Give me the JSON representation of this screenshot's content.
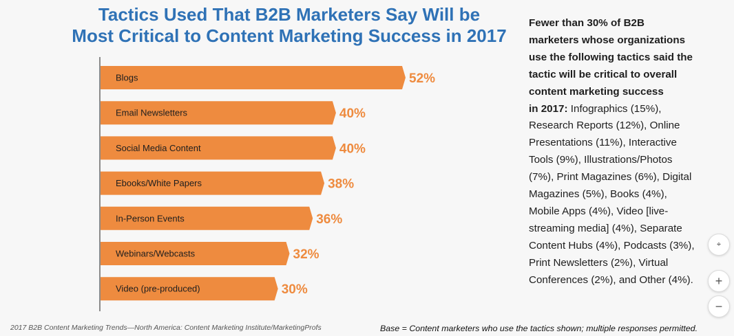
{
  "title": {
    "line1": "Tactics Used That B2B Marketers Say Will be",
    "line2": "Most Critical to Content Marketing Success in 2017"
  },
  "chart_data": {
    "type": "bar",
    "orientation": "horizontal",
    "title": "Tactics Used That B2B Marketers Say Will be Most Critical to Content Marketing Success in 2017",
    "categories": [
      "Blogs",
      "Email Newsletters",
      "Social Media Content",
      "Ebooks/White Papers",
      "In-Person Events",
      "Webinars/Webcasts",
      "Video (pre-produced)"
    ],
    "values": [
      52,
      40,
      40,
      38,
      36,
      32,
      30
    ],
    "value_labels": [
      "52%",
      "40%",
      "40%",
      "38%",
      "36%",
      "32%",
      "30%"
    ],
    "unit": "%",
    "bar_color": "#ee8b3f",
    "label_color": "#ee8b3f",
    "xlabel": "",
    "ylabel": "",
    "xlim": [
      0,
      52
    ]
  },
  "sidebar": {
    "bold_lines": [
      "Fewer than 30% of B2B",
      "marketers whose organizations",
      "use the following tactics said the",
      "tactic will be critical to overall",
      "content marketing success"
    ],
    "bold_lead": "in 2017:",
    "rest_first": " Infographics (15%),",
    "rest_lines": [
      "Research Reports (12%), Online",
      "Presentations (11%), Interactive",
      "Tools (9%), Illustrations/Photos",
      "(7%), Print Magazines (6%), Digital",
      "Magazines (5%), Books (4%),",
      "Mobile Apps (4%), Video [live-",
      "streaming media] (4%), Separate",
      "Content Hubs (4%), Podcasts (3%),",
      "Print Newsletters (2%), Virtual",
      "Conferences (2%), and Other (4%)."
    ]
  },
  "footer": {
    "source": "2017 B2B Content Marketing Trends—North America: Content Marketing Institute/MarketingProfs",
    "base": "Base = Content marketers who use the tactics shown; multiple responses permitted."
  },
  "controls": {
    "fit_icon": "collapse-icon",
    "zoom_in_icon": "plus-icon",
    "zoom_out_icon": "minus-icon"
  }
}
